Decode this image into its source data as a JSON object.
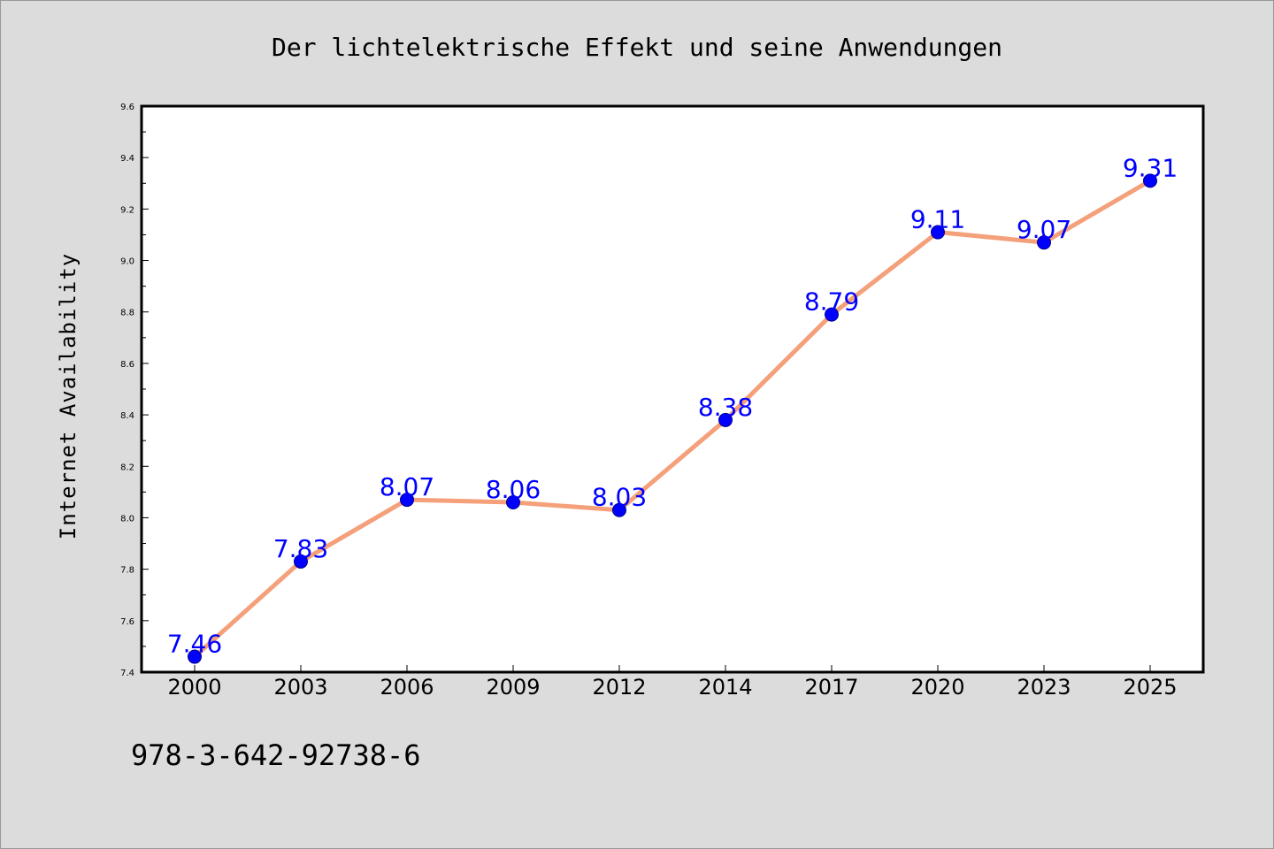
{
  "colors": {
    "background": "#dcdcdc",
    "plot_background": "#ffffff",
    "line": "#f4a07a",
    "marker": "#0000ff",
    "label": "#0000ff"
  },
  "footer": {
    "code": "978-3-642-92738-6"
  },
  "chart_data": {
    "type": "line",
    "title": "Der lichtelektrische Effekt und seine Anwendungen",
    "xlabel": "",
    "ylabel": "Internet Availability",
    "categories": [
      "2000",
      "2003",
      "2006",
      "2009",
      "2012",
      "2014",
      "2017",
      "2020",
      "2023",
      "2025"
    ],
    "series": [
      {
        "values": [
          7.46,
          7.83,
          8.07,
          8.06,
          8.03,
          8.38,
          8.79,
          9.11,
          9.07,
          9.31
        ],
        "labels": [
          "7.46",
          "7.83",
          "8.07",
          "8.06",
          "8.03",
          "8.38",
          "8.79",
          "9.11",
          "9.07",
          "9.31"
        ]
      }
    ],
    "ylim": [
      7.4,
      9.6
    ],
    "yticks": [
      "7.4",
      "7.6",
      "7.8",
      "8.0",
      "8.2",
      "8.4",
      "8.6",
      "8.8",
      "9.0",
      "9.2",
      "9.4",
      "9.6"
    ],
    "grid": false,
    "legend": "none"
  }
}
